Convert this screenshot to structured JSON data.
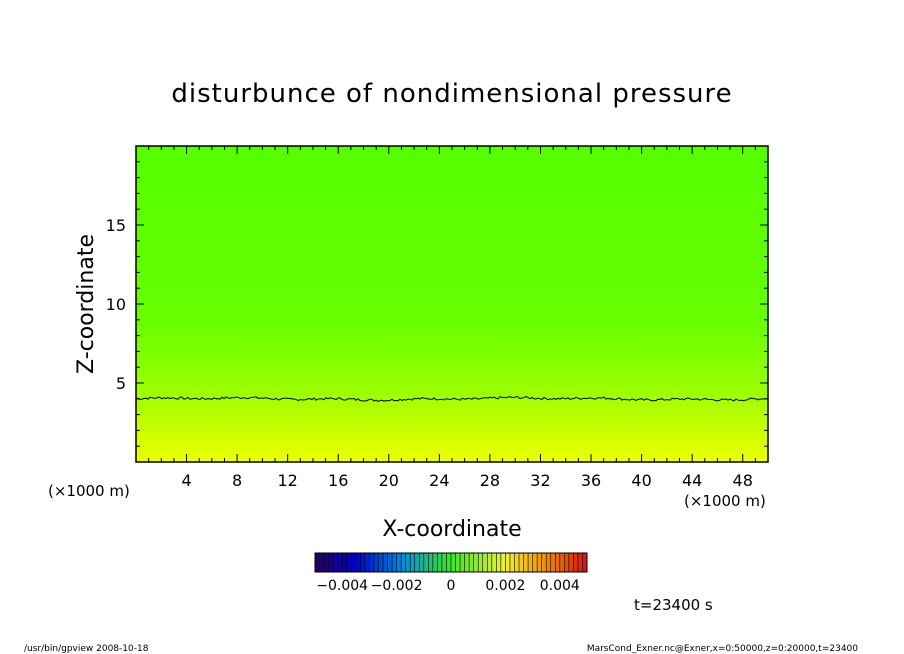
{
  "chart_data": {
    "type": "heatmap",
    "title": "disturbunce of nondimensional pressure",
    "xlabel": "X-coordinate",
    "ylabel": "Z-coordinate",
    "x_unit_left": "(×1000 m)",
    "x_unit_right": "(×1000 m)",
    "xlim": [
      0,
      50
    ],
    "ylim": [
      0,
      20
    ],
    "x_ticks": [
      4,
      8,
      12,
      16,
      20,
      24,
      28,
      32,
      36,
      40,
      44,
      48
    ],
    "y_ticks": [
      5,
      10,
      15
    ],
    "contour_z_approx": 4.0,
    "colorbar": {
      "range": [
        -0.005,
        0.005
      ],
      "tick_labels": [
        "-0.004",
        "-0.002",
        "0",
        "0.002",
        "0.004"
      ],
      "tick_values": [
        -0.004,
        -0.002,
        0,
        0.002,
        0.004
      ]
    },
    "field_colors": {
      "top": "#55ff00",
      "middle": "#66ff00",
      "bottom": "#eeff00"
    },
    "time_label": "t=23400 s"
  },
  "footer": {
    "left": "/usr/bin/gpview   2008-10-18",
    "right": "MarsCond_Exner.nc@Exner,x=0:50000,z=0:20000,t=23400"
  }
}
